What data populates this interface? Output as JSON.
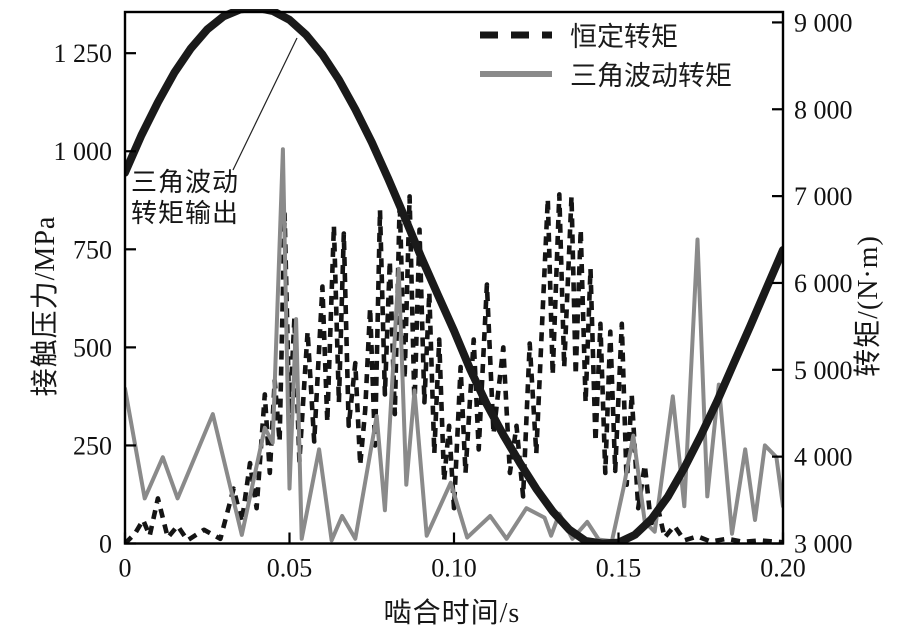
{
  "figure": {
    "background": "#ffffff",
    "frame_color": "#000000"
  },
  "legend": {
    "items": [
      {
        "label": "恒定转矩",
        "style": "dashed",
        "color": "#151515"
      },
      {
        "label": "三角波动转矩",
        "style": "solid",
        "color": "#8a8a8a"
      }
    ]
  },
  "annotation": {
    "line1": "三角波动",
    "line2": "转矩输出",
    "points_to": "三角波动转矩输出曲线"
  },
  "chart_data": {
    "type": "line",
    "title": "",
    "grid": false,
    "legend_position": "top-right-inside",
    "xlabel": "啮合时间/s",
    "x_axis": {
      "lim": [
        0,
        0.2
      ],
      "ticks": [
        0,
        0.05,
        0.1,
        0.15,
        0.2
      ],
      "tick_labels": [
        "0",
        "0.05",
        "0.10",
        "0.15",
        "0.20"
      ]
    },
    "left_axis": {
      "label": "接触压力/MPa",
      "lim": [
        0,
        1355
      ],
      "ticks": [
        0,
        250,
        500,
        750,
        1000,
        1250
      ],
      "tick_labels": [
        "0",
        "250",
        "500",
        "750",
        "1 000",
        "1 250"
      ]
    },
    "right_axis": {
      "label": "转矩/(N·m)",
      "lim": [
        3000,
        9120
      ],
      "ticks": [
        3000,
        4000,
        5000,
        6000,
        7000,
        8000,
        9000
      ],
      "tick_labels": [
        "3 000",
        "4 000",
        "5 000",
        "6 000",
        "7 000",
        "8 000",
        "9 000"
      ]
    },
    "series": [
      {
        "name": "恒定转矩",
        "unit": "MPa",
        "axis": "left",
        "style": "dashed",
        "color": "#141414",
        "width": 4.6,
        "dash": [
          9,
          7
        ],
        "points": [
          [
            0.0,
            0
          ],
          [
            0.003,
            25
          ],
          [
            0.0055,
            60
          ],
          [
            0.0075,
            20
          ],
          [
            0.01,
            115
          ],
          [
            0.013,
            15
          ],
          [
            0.016,
            45
          ],
          [
            0.019,
            8
          ],
          [
            0.024,
            35
          ],
          [
            0.029,
            12
          ],
          [
            0.033,
            140
          ],
          [
            0.0355,
            55
          ],
          [
            0.038,
            205
          ],
          [
            0.04,
            90
          ],
          [
            0.0425,
            380
          ],
          [
            0.044,
            180
          ],
          [
            0.0455,
            415
          ],
          [
            0.047,
            260
          ],
          [
            0.0485,
            840
          ],
          [
            0.05,
            310
          ],
          [
            0.0515,
            575
          ],
          [
            0.053,
            210
          ],
          [
            0.0555,
            540
          ],
          [
            0.0575,
            260
          ],
          [
            0.06,
            655
          ],
          [
            0.0615,
            310
          ],
          [
            0.0635,
            810
          ],
          [
            0.065,
            360
          ],
          [
            0.0665,
            790
          ],
          [
            0.068,
            300
          ],
          [
            0.07,
            460
          ],
          [
            0.0715,
            200
          ],
          [
            0.073,
            340
          ],
          [
            0.0745,
            600
          ],
          [
            0.076,
            250
          ],
          [
            0.0775,
            850
          ],
          [
            0.079,
            380
          ],
          [
            0.0805,
            720
          ],
          [
            0.082,
            330
          ],
          [
            0.0835,
            870
          ],
          [
            0.085,
            420
          ],
          [
            0.0865,
            885
          ],
          [
            0.088,
            350
          ],
          [
            0.0895,
            800
          ],
          [
            0.091,
            360
          ],
          [
            0.0925,
            640
          ],
          [
            0.094,
            230
          ],
          [
            0.0955,
            520
          ],
          [
            0.097,
            160
          ],
          [
            0.0985,
            300
          ],
          [
            0.1,
            90
          ],
          [
            0.102,
            450
          ],
          [
            0.1035,
            180
          ],
          [
            0.106,
            520
          ],
          [
            0.1075,
            240
          ],
          [
            0.11,
            660
          ],
          [
            0.112,
            280
          ],
          [
            0.115,
            500
          ],
          [
            0.117,
            180
          ],
          [
            0.119,
            300
          ],
          [
            0.121,
            120
          ],
          [
            0.123,
            510
          ],
          [
            0.125,
            230
          ],
          [
            0.127,
            600
          ],
          [
            0.1285,
            878
          ],
          [
            0.13,
            430
          ],
          [
            0.132,
            890
          ],
          [
            0.1335,
            450
          ],
          [
            0.1357,
            885
          ],
          [
            0.137,
            430
          ],
          [
            0.1385,
            800
          ],
          [
            0.14,
            360
          ],
          [
            0.1415,
            700
          ],
          [
            0.143,
            260
          ],
          [
            0.1445,
            560
          ],
          [
            0.146,
            180
          ],
          [
            0.1475,
            540
          ],
          [
            0.149,
            185
          ],
          [
            0.151,
            560
          ],
          [
            0.1525,
            150
          ],
          [
            0.154,
            380
          ],
          [
            0.156,
            90
          ],
          [
            0.158,
            200
          ],
          [
            0.16,
            40
          ],
          [
            0.162,
            90
          ],
          [
            0.164,
            15
          ],
          [
            0.167,
            45
          ],
          [
            0.17,
            8
          ],
          [
            0.174,
            18
          ],
          [
            0.178,
            5
          ],
          [
            0.183,
            12
          ],
          [
            0.188,
            4
          ],
          [
            0.193,
            8
          ],
          [
            0.2,
            3
          ]
        ]
      },
      {
        "name": "三角波动转矩",
        "unit": "MPa",
        "axis": "left",
        "style": "solid",
        "color": "#8a8a8a",
        "width": 4,
        "points": [
          [
            0.0,
            395
          ],
          [
            0.006,
            115
          ],
          [
            0.0115,
            220
          ],
          [
            0.016,
            115
          ],
          [
            0.0267,
            330
          ],
          [
            0.0355,
            22
          ],
          [
            0.0425,
            295
          ],
          [
            0.0449,
            257
          ],
          [
            0.048,
            1005
          ],
          [
            0.05,
            140
          ],
          [
            0.052,
            572
          ],
          [
            0.0537,
            12
          ],
          [
            0.059,
            240
          ],
          [
            0.0628,
            8
          ],
          [
            0.066,
            70
          ],
          [
            0.07,
            12
          ],
          [
            0.0765,
            325
          ],
          [
            0.079,
            85
          ],
          [
            0.0832,
            700
          ],
          [
            0.0855,
            150
          ],
          [
            0.088,
            390
          ],
          [
            0.0917,
            20
          ],
          [
            0.099,
            155
          ],
          [
            0.104,
            15
          ],
          [
            0.111,
            70
          ],
          [
            0.116,
            12
          ],
          [
            0.122,
            90
          ],
          [
            0.1275,
            66
          ],
          [
            0.1295,
            20
          ],
          [
            0.132,
            76
          ],
          [
            0.136,
            12
          ],
          [
            0.1405,
            55
          ],
          [
            0.144,
            10
          ],
          [
            0.148,
            6
          ],
          [
            0.1515,
            140
          ],
          [
            0.1545,
            275
          ],
          [
            0.158,
            55
          ],
          [
            0.161,
            30
          ],
          [
            0.1665,
            375
          ],
          [
            0.17,
            95
          ],
          [
            0.174,
            775
          ],
          [
            0.177,
            120
          ],
          [
            0.1805,
            405
          ],
          [
            0.1845,
            25
          ],
          [
            0.1885,
            240
          ],
          [
            0.1915,
            60
          ],
          [
            0.1945,
            250
          ],
          [
            0.198,
            220
          ],
          [
            0.2,
            95
          ]
        ]
      },
      {
        "name": "三角波动转矩输出",
        "unit": "N·m",
        "axis": "right",
        "style": "solid",
        "color": "#1a1a1a",
        "width": 8,
        "points": [
          [
            0.0,
            7270
          ],
          [
            0.005,
            7700
          ],
          [
            0.01,
            8080
          ],
          [
            0.015,
            8420
          ],
          [
            0.02,
            8700
          ],
          [
            0.025,
            8920
          ],
          [
            0.03,
            9070
          ],
          [
            0.035,
            9150
          ],
          [
            0.04,
            9170
          ],
          [
            0.045,
            9130
          ],
          [
            0.05,
            9030
          ],
          [
            0.055,
            8860
          ],
          [
            0.06,
            8630
          ],
          [
            0.065,
            8340
          ],
          [
            0.07,
            8000
          ],
          [
            0.075,
            7620
          ],
          [
            0.08,
            7200
          ],
          [
            0.085,
            6760
          ],
          [
            0.09,
            6300
          ],
          [
            0.095,
            5870
          ],
          [
            0.1,
            5450
          ],
          [
            0.105,
            5000
          ],
          [
            0.11,
            4600
          ],
          [
            0.115,
            4250
          ],
          [
            0.12,
            3930
          ],
          [
            0.125,
            3630
          ],
          [
            0.13,
            3370
          ],
          [
            0.135,
            3160
          ],
          [
            0.14,
            3030
          ],
          [
            0.145,
            3000
          ],
          [
            0.15,
            3010
          ],
          [
            0.155,
            3100
          ],
          [
            0.16,
            3280
          ],
          [
            0.165,
            3540
          ],
          [
            0.17,
            3870
          ],
          [
            0.175,
            4240
          ],
          [
            0.18,
            4640
          ],
          [
            0.185,
            5070
          ],
          [
            0.19,
            5500
          ],
          [
            0.195,
            5940
          ],
          [
            0.2,
            6380
          ]
        ]
      }
    ]
  }
}
